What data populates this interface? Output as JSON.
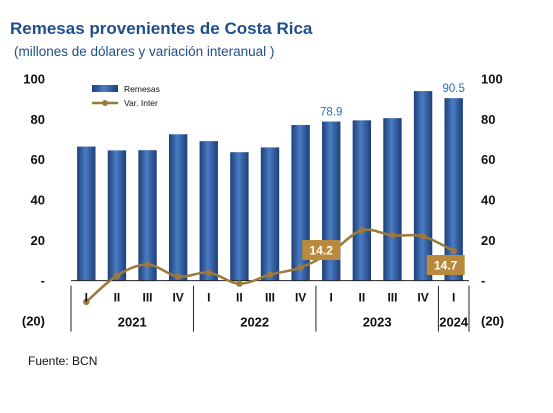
{
  "title": "Remesas provenientes de Costa Rica",
  "subtitle": "(millones de dólares y variación interanual )",
  "source": "Fuente: BCN",
  "colors": {
    "title": "#1f4e8c",
    "bar": "#3a6ab0",
    "bar_dark": "#1d3f78",
    "line": "#9c7a3c",
    "callout": "#b98a3e",
    "bar_label": "#2e6fb5"
  },
  "chart_data": {
    "type": "bar",
    "categories": [
      "I",
      "II",
      "III",
      "IV",
      "I",
      "II",
      "III",
      "IV",
      "I",
      "II",
      "III",
      "IV",
      "I"
    ],
    "years": [
      {
        "label": "2021",
        "span": [
          0,
          3
        ]
      },
      {
        "label": "2022",
        "span": [
          4,
          7
        ]
      },
      {
        "label": "2023",
        "span": [
          8,
          11
        ]
      },
      {
        "label": "2024",
        "span": [
          12,
          12
        ]
      }
    ],
    "series": [
      {
        "name": "Remesas",
        "type": "bar",
        "values": [
          66.5,
          64.6,
          64.7,
          72.6,
          69.2,
          63.7,
          66.1,
          77.2,
          78.9,
          79.5,
          80.6,
          94.0,
          90.5
        ]
      },
      {
        "name": "Var. Inter",
        "type": "line",
        "values": [
          -10.5,
          2.5,
          8.0,
          2.0,
          4.0,
          -1.5,
          3.0,
          6.5,
          14.2,
          25.0,
          22.5,
          22.0,
          14.7
        ]
      }
    ],
    "ylim": [
      -20,
      100
    ],
    "yticks": [
      100,
      80,
      60,
      40,
      20,
      0,
      -20
    ],
    "ytick_labels": [
      "100",
      "80",
      "60",
      "40",
      "20",
      "-",
      "(20)"
    ],
    "annotations": [
      {
        "series": "Remesas",
        "index": 8,
        "text": "78.9",
        "style": "plain"
      },
      {
        "series": "Remesas",
        "index": 12,
        "text": "90.5",
        "style": "plain"
      },
      {
        "series": "Var. Inter",
        "index": 8,
        "text": "14.2",
        "style": "callout"
      },
      {
        "series": "Var. Inter",
        "index": 12,
        "text": "14.7",
        "style": "callout"
      }
    ],
    "legend_position": "top-left"
  }
}
